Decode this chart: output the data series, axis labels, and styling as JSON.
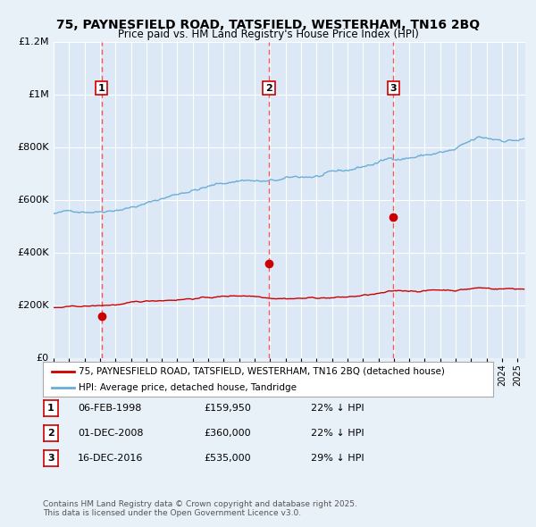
{
  "title": "75, PAYNESFIELD ROAD, TATSFIELD, WESTERHAM, TN16 2BQ",
  "subtitle": "Price paid vs. HM Land Registry's House Price Index (HPI)",
  "bg_color": "#e8f0f8",
  "plot_bg_color": "#dce8f5",
  "grid_color": "#ffffff",
  "hpi_color": "#6aaed6",
  "price_color": "#cc0000",
  "dashed_line_color": "#ff4444",
  "year_start": 1995,
  "year_end": 2025,
  "ylim": [
    0,
    1200000
  ],
  "yticks": [
    0,
    200000,
    400000,
    600000,
    800000,
    1000000,
    1200000
  ],
  "ytick_labels": [
    "£0",
    "£200K",
    "£400K",
    "£600K",
    "£800K",
    "£1M",
    "£1.2M"
  ],
  "sale_prices": [
    159950,
    360000,
    535000
  ],
  "sale_labels": [
    "1",
    "2",
    "3"
  ],
  "sale_years": [
    1998.1,
    2008.92,
    2016.96
  ],
  "legend_entries": [
    {
      "label": "75, PAYNESFIELD ROAD, TATSFIELD, WESTERHAM, TN16 2BQ (detached house)",
      "color": "#cc0000"
    },
    {
      "label": "HPI: Average price, detached house, Tandridge",
      "color": "#6aaed6"
    }
  ],
  "table_rows": [
    {
      "num": "1",
      "date": "06-FEB-1998",
      "price": "£159,950",
      "hpi": "22% ↓ HPI"
    },
    {
      "num": "2",
      "date": "01-DEC-2008",
      "price": "£360,000",
      "hpi": "22% ↓ HPI"
    },
    {
      "num": "3",
      "date": "16-DEC-2016",
      "price": "£535,000",
      "hpi": "29% ↓ HPI"
    }
  ],
  "footer": "Contains HM Land Registry data © Crown copyright and database right 2025.\nThis data is licensed under the Open Government Licence v3.0."
}
